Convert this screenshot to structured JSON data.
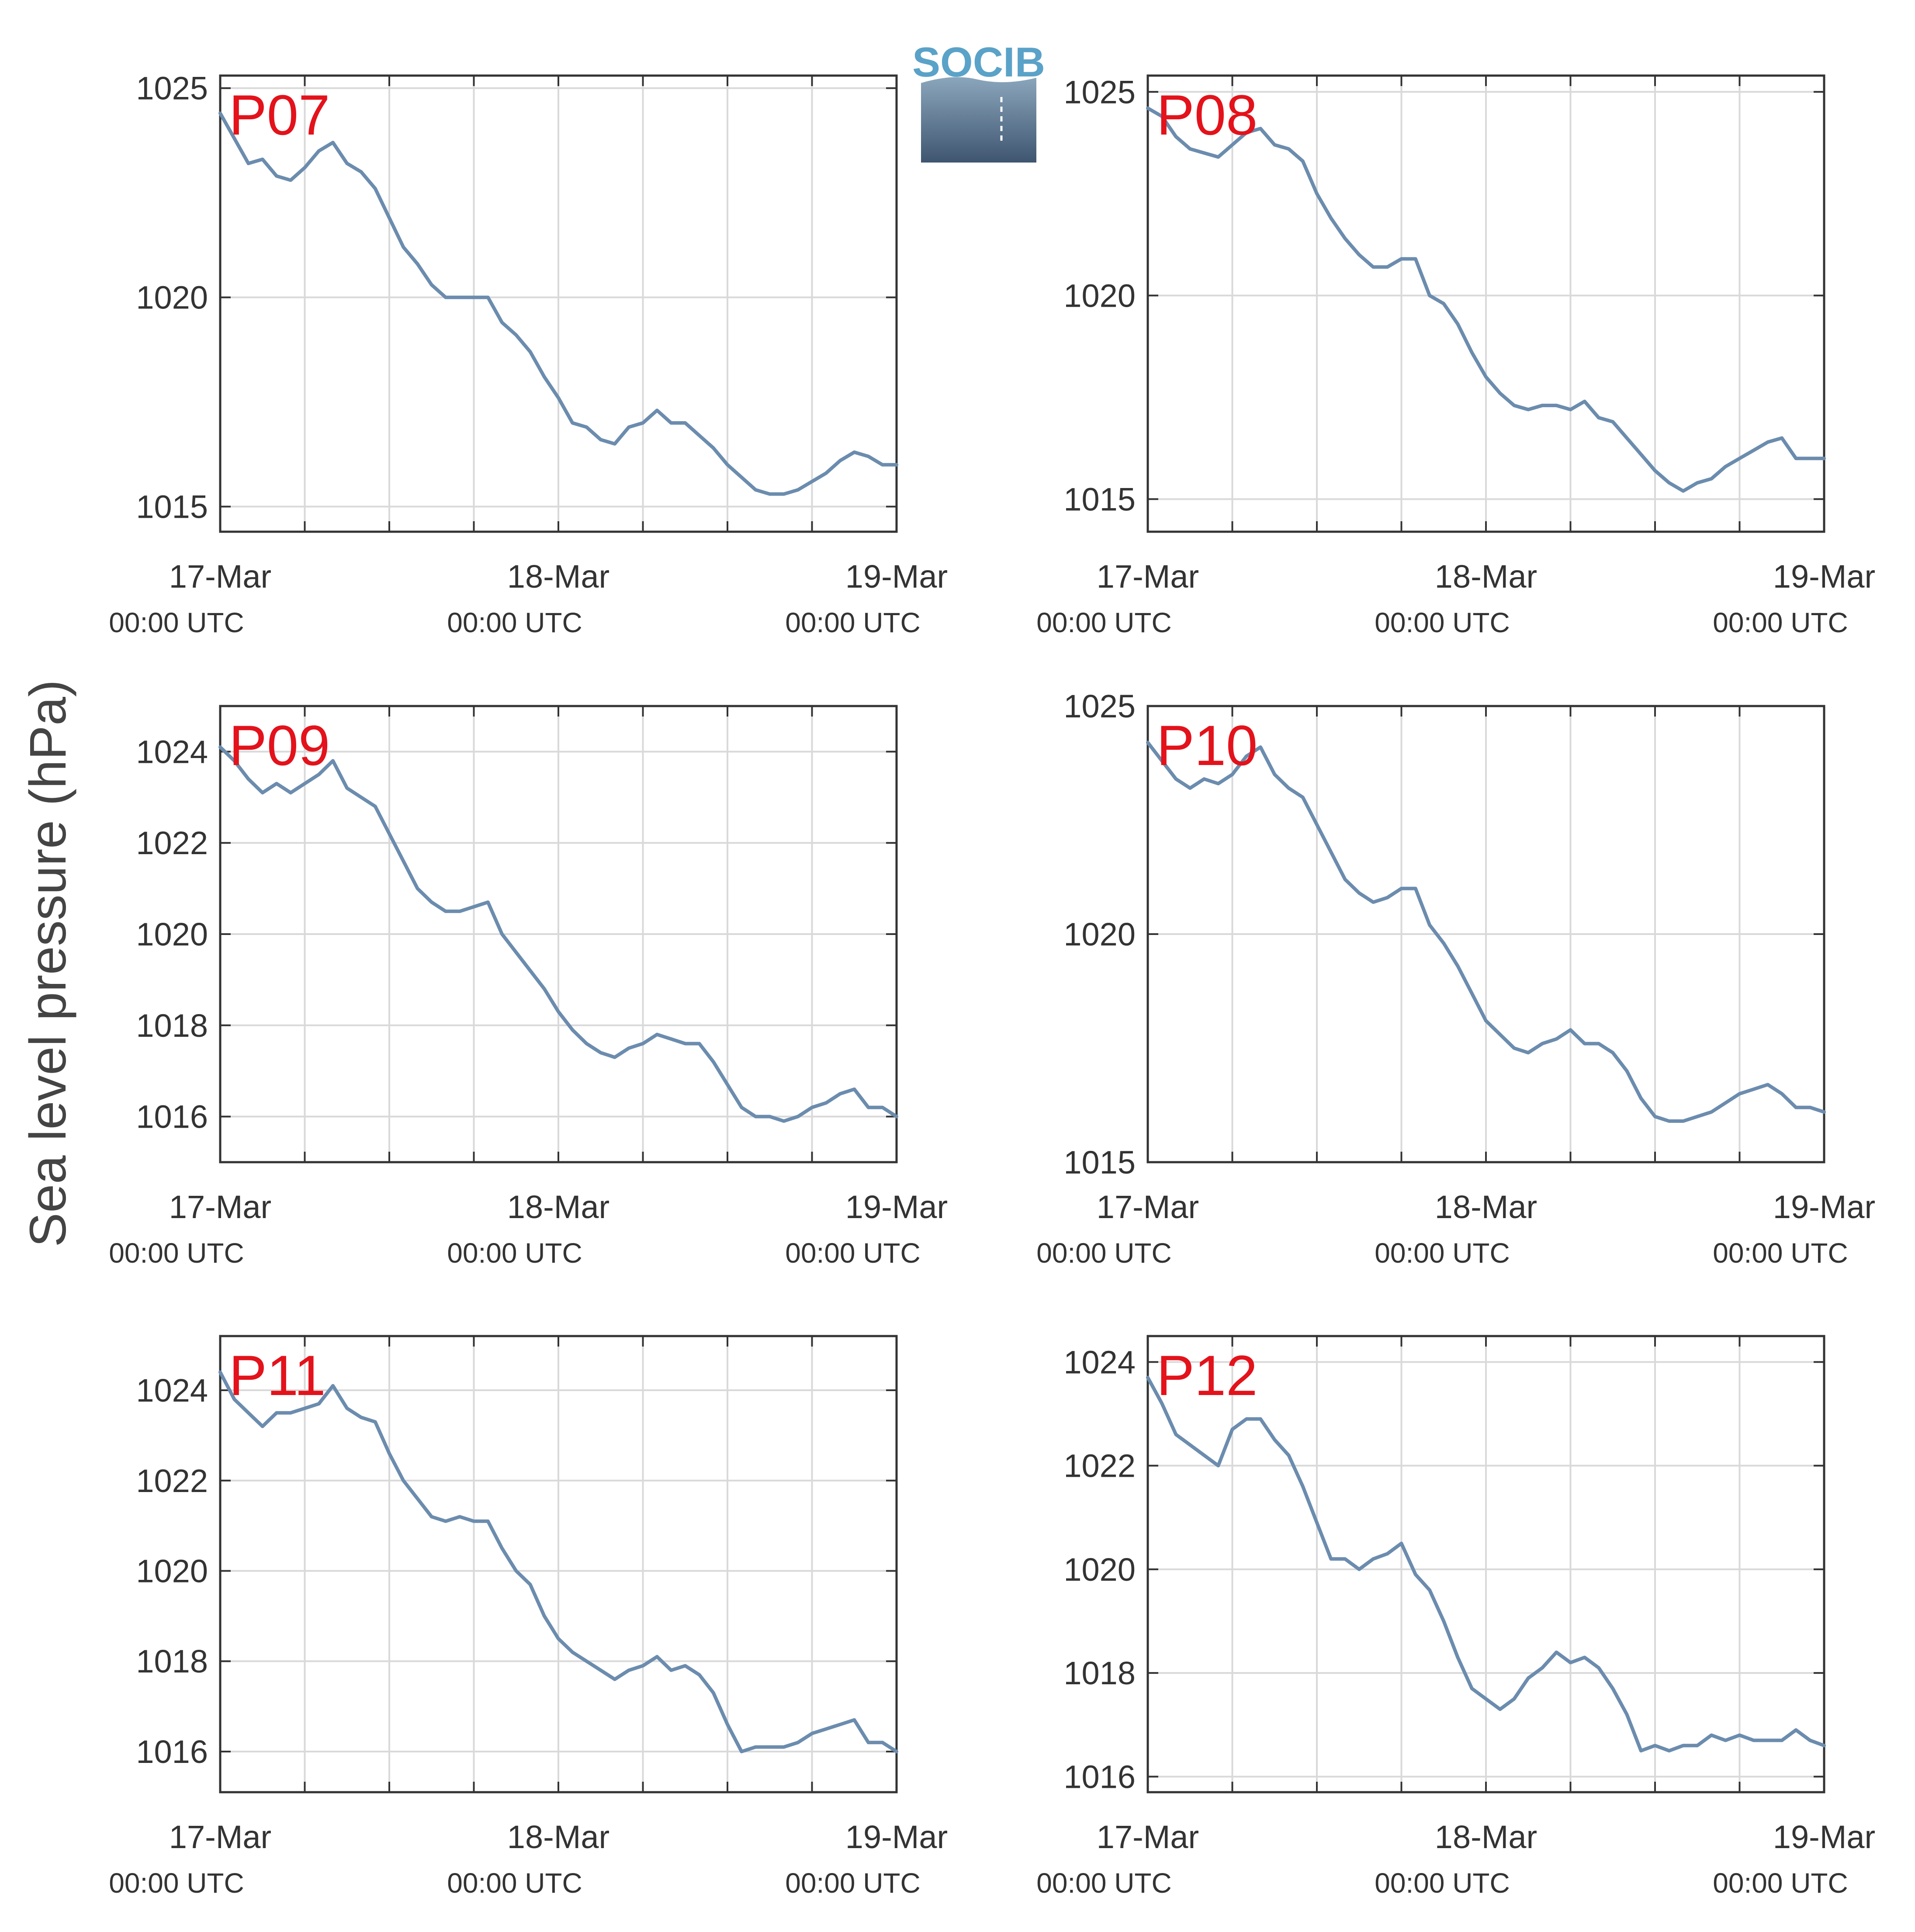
{
  "figure": {
    "ylabel": "Sea level pressure (hPa)",
    "logo_text": "SOCIB",
    "colors": {
      "line": "#6b8cae",
      "panel_label": "#e3121b",
      "grid": "#d9d9d9",
      "axes": "#333333",
      "text": "#333333"
    }
  },
  "chart_data": [
    {
      "type": "line",
      "title": "P07",
      "xlabel": "",
      "ylabel": "Sea level pressure (hPa)",
      "xlim": [
        0,
        48
      ],
      "ylim": [
        1014.4,
        1025.3
      ],
      "yticks": [
        1015,
        1020,
        1025
      ],
      "xticks": [
        {
          "x": 0,
          "line1": "17-Mar",
          "line2": "00:00 UTC"
        },
        {
          "x": 24,
          "line1": "18-Mar",
          "line2": "00:00 UTC"
        },
        {
          "x": 48,
          "line1": "19-Mar",
          "line2": "00:00 UTC"
        }
      ],
      "grid": true,
      "x_unit": "hours since 17-Mar 00:00 UTC",
      "x": [
        0,
        1,
        2,
        3,
        4,
        5,
        6,
        7,
        8,
        9,
        10,
        11,
        12,
        13,
        14,
        15,
        16,
        17,
        18,
        19,
        20,
        21,
        22,
        23,
        24,
        25,
        26,
        27,
        28,
        29,
        30,
        31,
        32,
        33,
        34,
        35,
        36,
        37,
        38,
        39,
        40,
        41,
        42,
        43,
        44,
        45,
        46,
        47,
        48
      ],
      "y": [
        1024.4,
        1023.8,
        1023.2,
        1023.3,
        1022.9,
        1022.8,
        1023.1,
        1023.5,
        1023.7,
        1023.2,
        1023.0,
        1022.6,
        1021.9,
        1021.2,
        1020.8,
        1020.3,
        1020.0,
        1020.0,
        1020.0,
        1020.0,
        1019.4,
        1019.1,
        1018.7,
        1018.1,
        1017.6,
        1017.0,
        1016.9,
        1016.6,
        1016.5,
        1016.9,
        1017.0,
        1017.3,
        1017.0,
        1017.0,
        1016.7,
        1016.4,
        1016.0,
        1015.7,
        1015.4,
        1015.3,
        1015.3,
        1015.4,
        1015.6,
        1015.8,
        1016.1,
        1016.3,
        1016.2,
        1016.0,
        1016.0
      ]
    },
    {
      "type": "line",
      "title": "P08",
      "xlabel": "",
      "ylabel": "Sea level pressure (hPa)",
      "xlim": [
        0,
        48
      ],
      "ylim": [
        1014.2,
        1025.4
      ],
      "yticks": [
        1015,
        1020,
        1025
      ],
      "xticks": [
        {
          "x": 0,
          "line1": "17-Mar",
          "line2": "00:00 UTC"
        },
        {
          "x": 24,
          "line1": "18-Mar",
          "line2": "00:00 UTC"
        },
        {
          "x": 48,
          "line1": "19-Mar",
          "line2": "00:00 UTC"
        }
      ],
      "grid": true,
      "x_unit": "hours since 17-Mar 00:00 UTC",
      "x": [
        0,
        1,
        2,
        3,
        4,
        5,
        6,
        7,
        8,
        9,
        10,
        11,
        12,
        13,
        14,
        15,
        16,
        17,
        18,
        19,
        20,
        21,
        22,
        23,
        24,
        25,
        26,
        27,
        28,
        29,
        30,
        31,
        32,
        33,
        34,
        35,
        36,
        37,
        38,
        39,
        40,
        41,
        42,
        43,
        44,
        45,
        46,
        47,
        48
      ],
      "y": [
        1024.6,
        1024.4,
        1023.9,
        1023.6,
        1023.5,
        1023.4,
        1023.7,
        1024.0,
        1024.1,
        1023.7,
        1023.6,
        1023.3,
        1022.5,
        1021.9,
        1021.4,
        1021.0,
        1020.7,
        1020.7,
        1020.9,
        1020.9,
        1020.0,
        1019.8,
        1019.3,
        1018.6,
        1018.0,
        1017.6,
        1017.3,
        1017.2,
        1017.3,
        1017.3,
        1017.2,
        1017.4,
        1017.0,
        1016.9,
        1016.5,
        1016.1,
        1015.7,
        1015.4,
        1015.2,
        1015.4,
        1015.5,
        1015.8,
        1016.0,
        1016.2,
        1016.4,
        1016.5,
        1016.0,
        1016.0,
        1016.0
      ]
    },
    {
      "type": "line",
      "title": "P09",
      "xlabel": "",
      "ylabel": "Sea level pressure (hPa)",
      "xlim": [
        0,
        48
      ],
      "ylim": [
        1015.0,
        1025.0
      ],
      "yticks": [
        1016,
        1018,
        1020,
        1022,
        1024
      ],
      "xticks": [
        {
          "x": 0,
          "line1": "17-Mar",
          "line2": "00:00 UTC"
        },
        {
          "x": 24,
          "line1": "18-Mar",
          "line2": "00:00 UTC"
        },
        {
          "x": 48,
          "line1": "19-Mar",
          "line2": "00:00 UTC"
        }
      ],
      "grid": true,
      "x_unit": "hours since 17-Mar 00:00 UTC",
      "x": [
        0,
        1,
        2,
        3,
        4,
        5,
        6,
        7,
        8,
        9,
        10,
        11,
        12,
        13,
        14,
        15,
        16,
        17,
        18,
        19,
        20,
        21,
        22,
        23,
        24,
        25,
        26,
        27,
        28,
        29,
        30,
        31,
        32,
        33,
        34,
        35,
        36,
        37,
        38,
        39,
        40,
        41,
        42,
        43,
        44,
        45,
        46,
        47,
        48
      ],
      "y": [
        1024.1,
        1023.8,
        1023.4,
        1023.1,
        1023.3,
        1023.1,
        1023.3,
        1023.5,
        1023.8,
        1023.2,
        1023.0,
        1022.8,
        1022.2,
        1021.6,
        1021.0,
        1020.7,
        1020.5,
        1020.5,
        1020.6,
        1020.7,
        1020.0,
        1019.6,
        1019.2,
        1018.8,
        1018.3,
        1017.9,
        1017.6,
        1017.4,
        1017.3,
        1017.5,
        1017.6,
        1017.8,
        1017.7,
        1017.6,
        1017.6,
        1017.2,
        1016.7,
        1016.2,
        1016.0,
        1016.0,
        1015.9,
        1016.0,
        1016.2,
        1016.3,
        1016.5,
        1016.6,
        1016.2,
        1016.2,
        1016.0
      ]
    },
    {
      "type": "line",
      "title": "P10",
      "xlabel": "",
      "ylabel": "Sea level pressure (hPa)",
      "xlim": [
        0,
        48
      ],
      "ylim": [
        1015.0,
        1025.0
      ],
      "yticks": [
        1015,
        1020,
        1025
      ],
      "xticks": [
        {
          "x": 0,
          "line1": "17-Mar",
          "line2": "00:00 UTC"
        },
        {
          "x": 24,
          "line1": "18-Mar",
          "line2": "00:00 UTC"
        },
        {
          "x": 48,
          "line1": "19-Mar",
          "line2": "00:00 UTC"
        }
      ],
      "grid": true,
      "x_unit": "hours since 17-Mar 00:00 UTC",
      "x": [
        0,
        1,
        2,
        3,
        4,
        5,
        6,
        7,
        8,
        9,
        10,
        11,
        12,
        13,
        14,
        15,
        16,
        17,
        18,
        19,
        20,
        21,
        22,
        23,
        24,
        25,
        26,
        27,
        28,
        29,
        30,
        31,
        32,
        33,
        34,
        35,
        36,
        37,
        38,
        39,
        40,
        41,
        42,
        43,
        44,
        45,
        46,
        47,
        48
      ],
      "y": [
        1024.2,
        1023.8,
        1023.4,
        1023.2,
        1023.4,
        1023.3,
        1023.5,
        1023.9,
        1024.1,
        1023.5,
        1023.2,
        1023.0,
        1022.4,
        1021.8,
        1021.2,
        1020.9,
        1020.7,
        1020.8,
        1021.0,
        1021.0,
        1020.2,
        1019.8,
        1019.3,
        1018.7,
        1018.1,
        1017.8,
        1017.5,
        1017.4,
        1017.6,
        1017.7,
        1017.9,
        1017.6,
        1017.6,
        1017.4,
        1017.0,
        1016.4,
        1016.0,
        1015.9,
        1015.9,
        1016.0,
        1016.1,
        1016.3,
        1016.5,
        1016.6,
        1016.7,
        1016.5,
        1016.2,
        1016.2,
        1016.1
      ]
    },
    {
      "type": "line",
      "title": "P11",
      "xlabel": "",
      "ylabel": "Sea level pressure (hPa)",
      "xlim": [
        0,
        48
      ],
      "ylim": [
        1015.1,
        1025.2
      ],
      "yticks": [
        1016,
        1018,
        1020,
        1022,
        1024
      ],
      "xticks": [
        {
          "x": 0,
          "line1": "17-Mar",
          "line2": "00:00 UTC"
        },
        {
          "x": 24,
          "line1": "18-Mar",
          "line2": "00:00 UTC"
        },
        {
          "x": 48,
          "line1": "19-Mar",
          "line2": "00:00 UTC"
        }
      ],
      "grid": true,
      "x_unit": "hours since 17-Mar 00:00 UTC",
      "x": [
        0,
        1,
        2,
        3,
        4,
        5,
        6,
        7,
        8,
        9,
        10,
        11,
        12,
        13,
        14,
        15,
        16,
        17,
        18,
        19,
        20,
        21,
        22,
        23,
        24,
        25,
        26,
        27,
        28,
        29,
        30,
        31,
        32,
        33,
        34,
        35,
        36,
        37,
        38,
        39,
        40,
        41,
        42,
        43,
        44,
        45,
        46,
        47,
        48
      ],
      "y": [
        1024.4,
        1023.8,
        1023.5,
        1023.2,
        1023.5,
        1023.5,
        1023.6,
        1023.7,
        1024.1,
        1023.6,
        1023.4,
        1023.3,
        1022.6,
        1022.0,
        1021.6,
        1021.2,
        1021.1,
        1021.2,
        1021.1,
        1021.1,
        1020.5,
        1020.0,
        1019.7,
        1019.0,
        1018.5,
        1018.2,
        1018.0,
        1017.8,
        1017.6,
        1017.8,
        1017.9,
        1018.1,
        1017.8,
        1017.9,
        1017.7,
        1017.3,
        1016.6,
        1016.0,
        1016.1,
        1016.1,
        1016.1,
        1016.2,
        1016.4,
        1016.5,
        1016.6,
        1016.7,
        1016.2,
        1016.2,
        1016.0
      ]
    },
    {
      "type": "line",
      "title": "P12",
      "xlabel": "",
      "ylabel": "Sea level pressure (hPa)",
      "xlim": [
        0,
        48
      ],
      "ylim": [
        1015.7,
        1024.5
      ],
      "yticks": [
        1016,
        1018,
        1020,
        1022,
        1024
      ],
      "xticks": [
        {
          "x": 0,
          "line1": "17-Mar",
          "line2": "00:00 UTC"
        },
        {
          "x": 24,
          "line1": "18-Mar",
          "line2": "00:00 UTC"
        },
        {
          "x": 48,
          "line1": "19-Mar",
          "line2": "00:00 UTC"
        }
      ],
      "grid": true,
      "x_unit": "hours since 17-Mar 00:00 UTC",
      "x": [
        0,
        1,
        2,
        3,
        4,
        5,
        6,
        7,
        8,
        9,
        10,
        11,
        12,
        13,
        14,
        15,
        16,
        17,
        18,
        19,
        20,
        21,
        22,
        23,
        24,
        25,
        26,
        27,
        28,
        29,
        30,
        31,
        32,
        33,
        34,
        35,
        36,
        37,
        38,
        39,
        40,
        41,
        42,
        43,
        44,
        45,
        46,
        47,
        48
      ],
      "y": [
        1023.7,
        1023.2,
        1022.6,
        1022.4,
        1022.2,
        1022.0,
        1022.7,
        1022.9,
        1022.9,
        1022.5,
        1022.2,
        1021.6,
        1020.9,
        1020.2,
        1020.2,
        1020.0,
        1020.2,
        1020.3,
        1020.5,
        1019.9,
        1019.6,
        1019.0,
        1018.3,
        1017.7,
        1017.5,
        1017.3,
        1017.5,
        1017.9,
        1018.1,
        1018.4,
        1018.2,
        1018.3,
        1018.1,
        1017.7,
        1017.2,
        1016.5,
        1016.6,
        1016.5,
        1016.6,
        1016.6,
        1016.8,
        1016.7,
        1016.8,
        1016.7,
        1016.7,
        1016.7,
        1016.9,
        1016.7,
        1016.6
      ]
    }
  ]
}
